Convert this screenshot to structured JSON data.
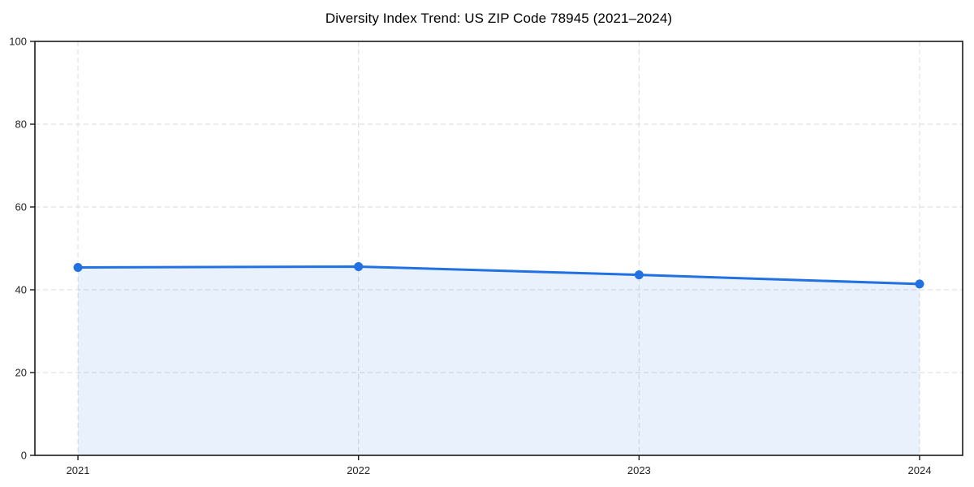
{
  "page": {
    "background": "#ffffff"
  },
  "chart_data": {
    "type": "area",
    "title": "Diversity Index Trend: US ZIP Code 78945 (2021–2024)",
    "categories": [
      "2021",
      "2022",
      "2023",
      "2024"
    ],
    "series": [
      {
        "name": "Diversity Index",
        "values": [
          45.4,
          45.6,
          43.6,
          41.4
        ]
      }
    ],
    "xlabel": "",
    "ylabel": "",
    "ylim": [
      0,
      100
    ],
    "yticks": [
      0,
      20,
      40,
      60,
      80,
      100
    ],
    "grid": true,
    "grid_style": "dashed",
    "legend": "none",
    "colors": {
      "line": "#2171e3",
      "marker": "#2171e3",
      "fill": "rgba(33, 113, 227, 0.10)",
      "gridline": "#e0e0e0",
      "axis": "#1a1a1a",
      "tick_label": "#222222",
      "title": "#000000",
      "background": "#ffffff"
    }
  }
}
